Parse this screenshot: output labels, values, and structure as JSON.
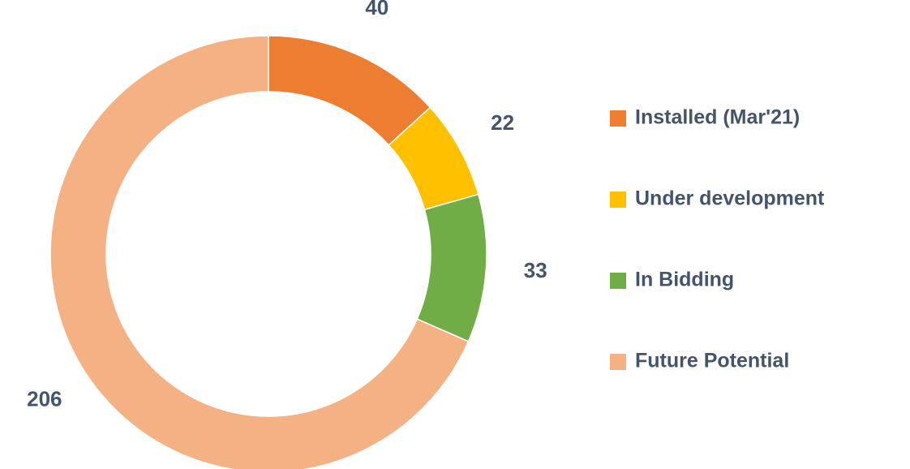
{
  "chart_data": {
    "type": "donut",
    "categories": [
      "Installed (Mar'21)",
      "Under development",
      "In Bidding",
      "Future Potential"
    ],
    "values": [
      40,
      22,
      33,
      206
    ],
    "colors": [
      "#ED7D31",
      "#FFC000",
      "#70AD47",
      "#F4B183"
    ],
    "legend": "right"
  }
}
